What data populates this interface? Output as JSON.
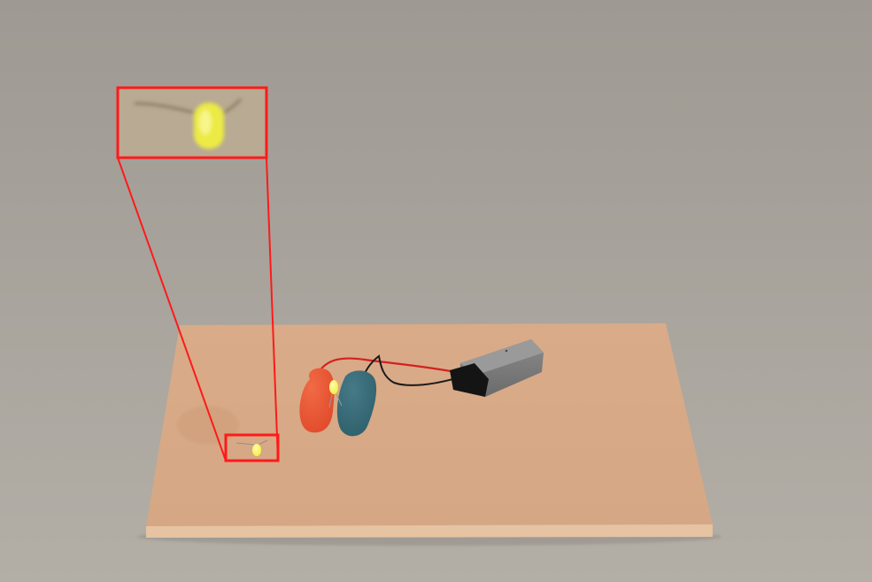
{
  "scene": {
    "background_top_color": "#9e9a93",
    "background_bottom_color": "#b3aea6",
    "board_top_color": "#d5a784",
    "board_side_color": "#e6c3a2",
    "highlight_color": "#ff1a1a",
    "battery_color": "#6b6b6b",
    "red_clay_color": "#e04a2a",
    "teal_clay_color": "#2e5f6b",
    "led_color": "#f4ef3a"
  },
  "objects": {
    "board": "wooden-board",
    "battery": "9v-battery",
    "clay_positive": "red-play-dough",
    "clay_negative": "blue-play-dough",
    "led_on_clay": "yellow-led",
    "loose_led": "yellow-led",
    "zoom_callout": "magnified-led-inset"
  }
}
